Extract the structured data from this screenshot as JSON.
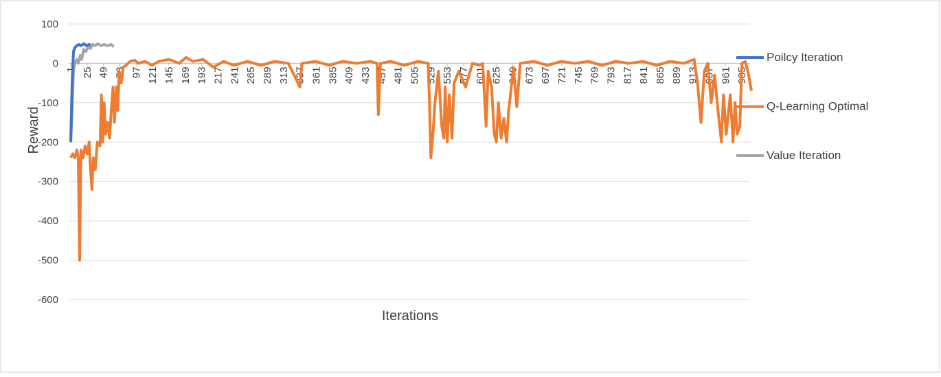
{
  "chart_data": {
    "type": "line",
    "xlabel": "Iterations",
    "ylabel": "Reward",
    "xlim": [
      1,
      1000
    ],
    "ylim": [
      -600,
      100
    ],
    "xticks": [
      1,
      25,
      49,
      73,
      97,
      121,
      145,
      169,
      193,
      217,
      241,
      265,
      289,
      313,
      337,
      361,
      385,
      409,
      433,
      457,
      481,
      505,
      529,
      553,
      577,
      601,
      625,
      649,
      673,
      697,
      721,
      745,
      769,
      793,
      817,
      841,
      865,
      889,
      913,
      937,
      961,
      985
    ],
    "yticks": [
      -600,
      -500,
      -400,
      -300,
      -200,
      -100,
      0,
      100
    ],
    "grid": true,
    "legend": "right",
    "series": [
      {
        "name": "Poilcy Iteration",
        "color": "#4472c4",
        "x": [
          1,
          3,
          5,
          7,
          10,
          13,
          16,
          20,
          24,
          28,
          30
        ],
        "values": [
          -200,
          -50,
          30,
          40,
          45,
          48,
          45,
          50,
          45,
          48,
          45
        ]
      },
      {
        "name": "Q-Learning Optimal",
        "color": "#ed7d31",
        "x": [
          1,
          4,
          7,
          10,
          12,
          14,
          16,
          19,
          22,
          25,
          28,
          30,
          32,
          34,
          37,
          40,
          44,
          46,
          48,
          50,
          52,
          55,
          58,
          60,
          63,
          65,
          68,
          70,
          72,
          75,
          78,
          82,
          88,
          95,
          100,
          110,
          120,
          130,
          145,
          160,
          170,
          180,
          195,
          210,
          225,
          240,
          260,
          280,
          300,
          320,
          337,
          340,
          360,
          380,
          400,
          420,
          440,
          450,
          452,
          455,
          470,
          490,
          510,
          525,
          527,
          529,
          532,
          535,
          540,
          545,
          548,
          550,
          553,
          556,
          560,
          563,
          570,
          580,
          590,
          601,
          605,
          610,
          613,
          618,
          622,
          625,
          628,
          632,
          636,
          640,
          643,
          647,
          650,
          655,
          660,
          680,
          700,
          720,
          740,
          760,
          780,
          800,
          820,
          840,
          860,
          880,
          900,
          915,
          920,
          925,
          930,
          935,
          940,
          945,
          950,
          955,
          958,
          962,
          965,
          968,
          972,
          975,
          978,
          982,
          985,
          990,
          995,
          999
        ],
        "values": [
          -240,
          -230,
          -240,
          -220,
          -240,
          -500,
          -220,
          -240,
          -210,
          -230,
          -200,
          -270,
          -320,
          -240,
          -270,
          -200,
          -210,
          -80,
          -200,
          -100,
          -180,
          -150,
          -190,
          -130,
          -60,
          -150,
          -60,
          -120,
          -20,
          -50,
          -10,
          -5,
          5,
          8,
          0,
          5,
          -5,
          5,
          10,
          0,
          15,
          5,
          10,
          -10,
          5,
          -5,
          5,
          -5,
          5,
          0,
          -60,
          0,
          5,
          -5,
          5,
          0,
          5,
          0,
          -130,
          0,
          5,
          -5,
          5,
          0,
          -100,
          -240,
          -180,
          -100,
          -20,
          -160,
          -190,
          -60,
          -200,
          -80,
          -190,
          -50,
          -20,
          -60,
          0,
          -5,
          0,
          -160,
          -20,
          -60,
          -180,
          -200,
          -100,
          -190,
          -140,
          -200,
          -120,
          -60,
          -10,
          -110,
          0,
          5,
          -5,
          5,
          0,
          5,
          -5,
          5,
          0,
          5,
          -5,
          5,
          0,
          10,
          -50,
          -150,
          -20,
          0,
          -100,
          -30,
          -120,
          -200,
          -80,
          -180,
          -130,
          -80,
          -200,
          -100,
          -180,
          -160,
          0,
          5,
          -30,
          -70
        ]
      },
      {
        "name": "Value Iteration",
        "color": "#a5a5a5",
        "x": [
          1,
          3,
          5,
          7,
          10,
          12,
          15,
          17,
          20,
          23,
          26,
          30,
          33,
          37,
          41,
          45,
          50,
          55,
          60,
          64
        ],
        "values": [
          -200,
          -120,
          -20,
          0,
          10,
          0,
          20,
          10,
          35,
          30,
          40,
          38,
          48,
          45,
          50,
          45,
          48,
          45,
          48,
          42
        ]
      }
    ]
  }
}
